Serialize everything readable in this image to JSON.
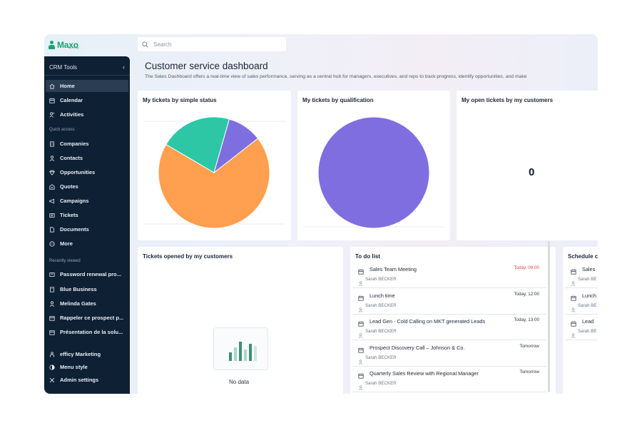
{
  "brand": {
    "name": "Maxo",
    "sub": "by efficy"
  },
  "search": {
    "placeholder": "Search"
  },
  "sidebar": {
    "title": "CRM Tools",
    "main_items": [
      {
        "label": "Home",
        "icon": "home-icon"
      },
      {
        "label": "Calendar",
        "icon": "calendar-icon"
      },
      {
        "label": "Activities",
        "icon": "activities-icon"
      }
    ],
    "quick_access_label": "Quick access",
    "quick_items": [
      {
        "label": "Companies",
        "icon": "building-icon"
      },
      {
        "label": "Contacts",
        "icon": "person-icon"
      },
      {
        "label": "Opportunities",
        "icon": "diamond-icon"
      },
      {
        "label": "Quotes",
        "icon": "quote-icon"
      },
      {
        "label": "Campaigns",
        "icon": "megaphone-icon"
      },
      {
        "label": "Tickets",
        "icon": "ticket-icon"
      },
      {
        "label": "Documents",
        "icon": "document-icon"
      },
      {
        "label": "More",
        "icon": "more-icon"
      }
    ],
    "recent_label": "Recently viewed",
    "recent_items": [
      {
        "label": "Password renewal pro...",
        "icon": "ticket-icon"
      },
      {
        "label": "Blue Business",
        "icon": "building-icon"
      },
      {
        "label": "Melinda Gates",
        "icon": "person-icon"
      },
      {
        "label": "Rappeler ce prospect p...",
        "icon": "calendar-icon"
      },
      {
        "label": "Présentation de la solu...",
        "icon": "calendar-icon"
      }
    ],
    "bottom_items": [
      {
        "label": "efficy Marketing",
        "icon": "marketing-icon"
      },
      {
        "label": "Menu style",
        "icon": "contrast-icon"
      },
      {
        "label": "Admin settings",
        "icon": "tools-icon"
      }
    ]
  },
  "page": {
    "title": "Customer service dashboard",
    "description": "The Sales Dashboard offers a real-time view of sales performance, serving as a central hub for managers, executives, and reps to track progress, identify opportunities, and make"
  },
  "cards": {
    "status": {
      "title": "My tickets by simple status"
    },
    "qualification": {
      "title": "My tickets by qualification"
    },
    "open_customers": {
      "title": "My open tickets by my customers",
      "value": "0"
    },
    "opened_customers": {
      "title": "Tickets opened by my customers",
      "no_data": "No data"
    },
    "todo": {
      "title": "To do list"
    },
    "schedule": {
      "title": "Schedule c"
    }
  },
  "colors": {
    "orange": "#ff9f4f",
    "teal": "#2ec7a6",
    "purple": "#7f6ee0",
    "sidebar": "#0e2034",
    "brand_green": "#19a36f",
    "overdue": "#d64b4b"
  },
  "chart_data": [
    {
      "type": "pie",
      "title": "My tickets by simple status",
      "slices": [
        {
          "value": 69,
          "color": "#ff9f4f"
        },
        {
          "value": 21,
          "color": "#2ec7a6"
        },
        {
          "value": 10,
          "color": "#7f6ee0"
        }
      ]
    },
    {
      "type": "pie",
      "title": "My tickets by qualification",
      "slices": [
        {
          "value": 100,
          "color": "#7f6ee0"
        }
      ]
    }
  ],
  "todo_items": [
    {
      "title": "Sales Team Meeting",
      "date": "Today, 09:00",
      "overdue": true,
      "person": "Sarah BECKER"
    },
    {
      "title": "Lunch time",
      "date": "Today, 12:00",
      "overdue": false,
      "person": "Sarah BECKER"
    },
    {
      "title": "Lead Gen - Cold Calling on MKT generated Leads",
      "date": "Today, 13:00",
      "overdue": false,
      "person": "Sarah BECKER"
    },
    {
      "title": "Prospect Discovery Call – Johnson & Co.",
      "date": "Tomorrow",
      "overdue": false,
      "person": "Sarah BECKER"
    },
    {
      "title": "Quarterly Sales Review with Regional Manager",
      "date": "Tomorrow",
      "overdue": false,
      "person": "Sarah BECKER"
    }
  ],
  "schedule_items": [
    {
      "title": "Sales",
      "person": "Sarah BE"
    },
    {
      "title": "Lunch",
      "person": "Sarah BE"
    },
    {
      "title": "Lead",
      "person": "Sarah BE"
    }
  ]
}
